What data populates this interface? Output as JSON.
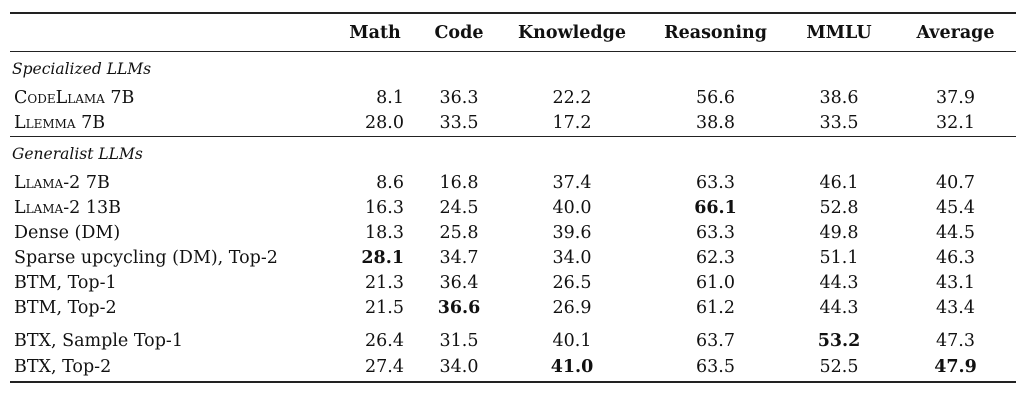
{
  "table": {
    "columns": [
      "",
      "Math",
      "Code",
      "Knowledge",
      "Reasoning",
      "MMLU",
      "Average"
    ],
    "groups": [
      {
        "title": "Specialized LLMs",
        "rows": [
          {
            "model": "CodeLlama 7B",
            "values": [
              "8.1",
              "36.3",
              "22.2",
              "56.6",
              "38.6",
              "37.9"
            ]
          },
          {
            "model": "Llemma 7B",
            "values": [
              "28.0",
              "33.5",
              "17.2",
              "38.8",
              "33.5",
              "32.1"
            ]
          }
        ]
      },
      {
        "title": "Generalist LLMs",
        "rows": [
          {
            "model": "Llama-2 7B",
            "values": [
              "8.6",
              "16.8",
              "37.4",
              "63.3",
              "46.1",
              "40.7"
            ]
          },
          {
            "model": "Llama-2 13B",
            "values": [
              "16.3",
              "24.5",
              "40.0",
              "66.1",
              "52.8",
              "45.4"
            ]
          },
          {
            "model": "Dense (DM)",
            "values": [
              "18.3",
              "25.8",
              "39.6",
              "63.3",
              "49.8",
              "44.5"
            ]
          },
          {
            "model": "Sparse upcycling (DM), Top-2",
            "values": [
              "28.1",
              "34.7",
              "34.0",
              "62.3",
              "51.1",
              "46.3"
            ]
          },
          {
            "model": "BTM, Top-1",
            "values": [
              "21.3",
              "36.4",
              "26.5",
              "61.0",
              "44.3",
              "43.1"
            ]
          },
          {
            "model": "BTM, Top-2",
            "values": [
              "21.5",
              "36.6",
              "26.9",
              "61.2",
              "44.3",
              "43.4"
            ]
          },
          {
            "model": "BTX, Sample Top-1",
            "values": [
              "26.4",
              "31.5",
              "40.1",
              "63.7",
              "53.2",
              "47.3"
            ]
          },
          {
            "model": "BTX, Top-2",
            "values": [
              "27.4",
              "34.0",
              "41.0",
              "63.5",
              "52.5",
              "47.9"
            ]
          }
        ]
      }
    ]
  }
}
